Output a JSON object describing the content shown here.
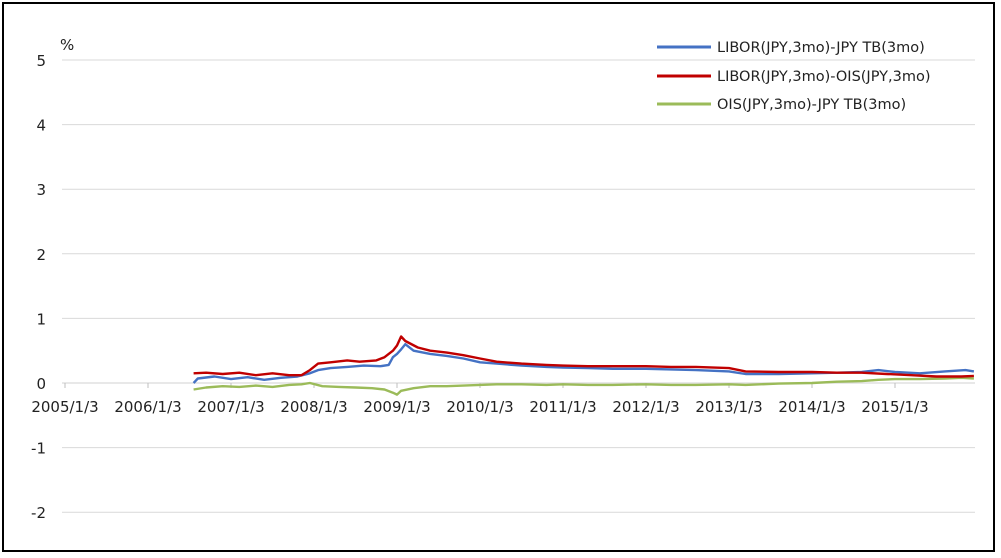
{
  "chart_data": {
    "type": "line",
    "title": "",
    "xlabel": "",
    "ylabel": "",
    "unit_label": "%",
    "ylim": [
      -2.5,
      5.5
    ],
    "yticks": [
      5,
      4,
      3,
      2,
      1,
      0,
      -1,
      -2
    ],
    "xticks": [
      "2005/1/3",
      "2006/1/3",
      "2007/1/3",
      "2008/1/3",
      "2009/1/3",
      "2010/1/3",
      "2011/1/3",
      "2012/1/3",
      "2013/1/3",
      "2014/1/3",
      "2015/1/3"
    ],
    "grid": true,
    "legend_position": "top-right",
    "series": [
      {
        "name": "LIBOR(JPY,3mo)-JPY TB(3mo)",
        "color": "#4472c4",
        "points": [
          [
            2006.55,
            0.0
          ],
          [
            2006.6,
            0.07
          ],
          [
            2006.8,
            0.1
          ],
          [
            2007.0,
            0.06
          ],
          [
            2007.2,
            0.09
          ],
          [
            2007.4,
            0.05
          ],
          [
            2007.6,
            0.08
          ],
          [
            2007.8,
            0.1
          ],
          [
            2007.95,
            0.15
          ],
          [
            2008.05,
            0.2
          ],
          [
            2008.2,
            0.23
          ],
          [
            2008.4,
            0.25
          ],
          [
            2008.6,
            0.27
          ],
          [
            2008.8,
            0.26
          ],
          [
            2008.9,
            0.28
          ],
          [
            2008.95,
            0.4
          ],
          [
            2009.0,
            0.45
          ],
          [
            2009.05,
            0.52
          ],
          [
            2009.1,
            0.6
          ],
          [
            2009.2,
            0.5
          ],
          [
            2009.4,
            0.45
          ],
          [
            2009.6,
            0.42
          ],
          [
            2009.8,
            0.38
          ],
          [
            2010.0,
            0.32
          ],
          [
            2010.2,
            0.3
          ],
          [
            2010.5,
            0.27
          ],
          [
            2010.8,
            0.25
          ],
          [
            2011.0,
            0.24
          ],
          [
            2011.3,
            0.23
          ],
          [
            2011.6,
            0.22
          ],
          [
            2012.0,
            0.22
          ],
          [
            2012.3,
            0.21
          ],
          [
            2012.6,
            0.2
          ],
          [
            2013.0,
            0.18
          ],
          [
            2013.2,
            0.14
          ],
          [
            2013.6,
            0.14
          ],
          [
            2014.0,
            0.15
          ],
          [
            2014.3,
            0.16
          ],
          [
            2014.6,
            0.17
          ],
          [
            2014.8,
            0.2
          ],
          [
            2015.0,
            0.17
          ],
          [
            2015.3,
            0.15
          ],
          [
            2015.6,
            0.18
          ],
          [
            2015.85,
            0.2
          ],
          [
            2015.95,
            0.18
          ]
        ]
      },
      {
        "name": "LIBOR(JPY,3mo)-OIS(JPY,3mo)",
        "color": "#c00000",
        "points": [
          [
            2006.55,
            0.15
          ],
          [
            2006.7,
            0.16
          ],
          [
            2006.9,
            0.14
          ],
          [
            2007.1,
            0.16
          ],
          [
            2007.3,
            0.12
          ],
          [
            2007.5,
            0.15
          ],
          [
            2007.7,
            0.12
          ],
          [
            2007.85,
            0.12
          ],
          [
            2007.95,
            0.2
          ],
          [
            2008.05,
            0.3
          ],
          [
            2008.2,
            0.32
          ],
          [
            2008.4,
            0.35
          ],
          [
            2008.55,
            0.33
          ],
          [
            2008.75,
            0.35
          ],
          [
            2008.85,
            0.4
          ],
          [
            2008.95,
            0.5
          ],
          [
            2009.0,
            0.58
          ],
          [
            2009.05,
            0.72
          ],
          [
            2009.1,
            0.65
          ],
          [
            2009.25,
            0.55
          ],
          [
            2009.4,
            0.5
          ],
          [
            2009.6,
            0.47
          ],
          [
            2009.8,
            0.43
          ],
          [
            2010.0,
            0.38
          ],
          [
            2010.2,
            0.33
          ],
          [
            2010.5,
            0.3
          ],
          [
            2010.8,
            0.28
          ],
          [
            2011.0,
            0.27
          ],
          [
            2011.3,
            0.26
          ],
          [
            2011.6,
            0.26
          ],
          [
            2012.0,
            0.26
          ],
          [
            2012.3,
            0.25
          ],
          [
            2012.6,
            0.25
          ],
          [
            2013.0,
            0.23
          ],
          [
            2013.2,
            0.18
          ],
          [
            2013.6,
            0.17
          ],
          [
            2014.0,
            0.17
          ],
          [
            2014.3,
            0.16
          ],
          [
            2014.6,
            0.16
          ],
          [
            2014.9,
            0.14
          ],
          [
            2015.2,
            0.12
          ],
          [
            2015.5,
            0.1
          ],
          [
            2015.8,
            0.1
          ],
          [
            2015.95,
            0.11
          ]
        ]
      },
      {
        "name": "OIS(JPY,3mo)-JPY TB(3mo)",
        "color": "#9bbb59",
        "points": [
          [
            2006.55,
            -0.1
          ],
          [
            2006.7,
            -0.07
          ],
          [
            2006.9,
            -0.05
          ],
          [
            2007.1,
            -0.06
          ],
          [
            2007.3,
            -0.04
          ],
          [
            2007.5,
            -0.06
          ],
          [
            2007.7,
            -0.03
          ],
          [
            2007.85,
            -0.02
          ],
          [
            2007.95,
            0.0
          ],
          [
            2008.1,
            -0.05
          ],
          [
            2008.3,
            -0.06
          ],
          [
            2008.5,
            -0.07
          ],
          [
            2008.7,
            -0.08
          ],
          [
            2008.85,
            -0.1
          ],
          [
            2008.95,
            -0.15
          ],
          [
            2009.0,
            -0.18
          ],
          [
            2009.05,
            -0.12
          ],
          [
            2009.2,
            -0.08
          ],
          [
            2009.4,
            -0.05
          ],
          [
            2009.6,
            -0.05
          ],
          [
            2009.8,
            -0.04
          ],
          [
            2010.0,
            -0.03
          ],
          [
            2010.2,
            -0.02
          ],
          [
            2010.5,
            -0.02
          ],
          [
            2010.8,
            -0.03
          ],
          [
            2011.0,
            -0.02
          ],
          [
            2011.3,
            -0.03
          ],
          [
            2011.6,
            -0.03
          ],
          [
            2012.0,
            -0.02
          ],
          [
            2012.3,
            -0.03
          ],
          [
            2012.6,
            -0.03
          ],
          [
            2013.0,
            -0.02
          ],
          [
            2013.2,
            -0.03
          ],
          [
            2013.6,
            -0.01
          ],
          [
            2014.0,
            0.0
          ],
          [
            2014.3,
            0.02
          ],
          [
            2014.6,
            0.03
          ],
          [
            2014.8,
            0.05
          ],
          [
            2015.0,
            0.06
          ],
          [
            2015.3,
            0.06
          ],
          [
            2015.6,
            0.07
          ],
          [
            2015.8,
            0.08
          ],
          [
            2015.95,
            0.07
          ]
        ]
      }
    ]
  }
}
